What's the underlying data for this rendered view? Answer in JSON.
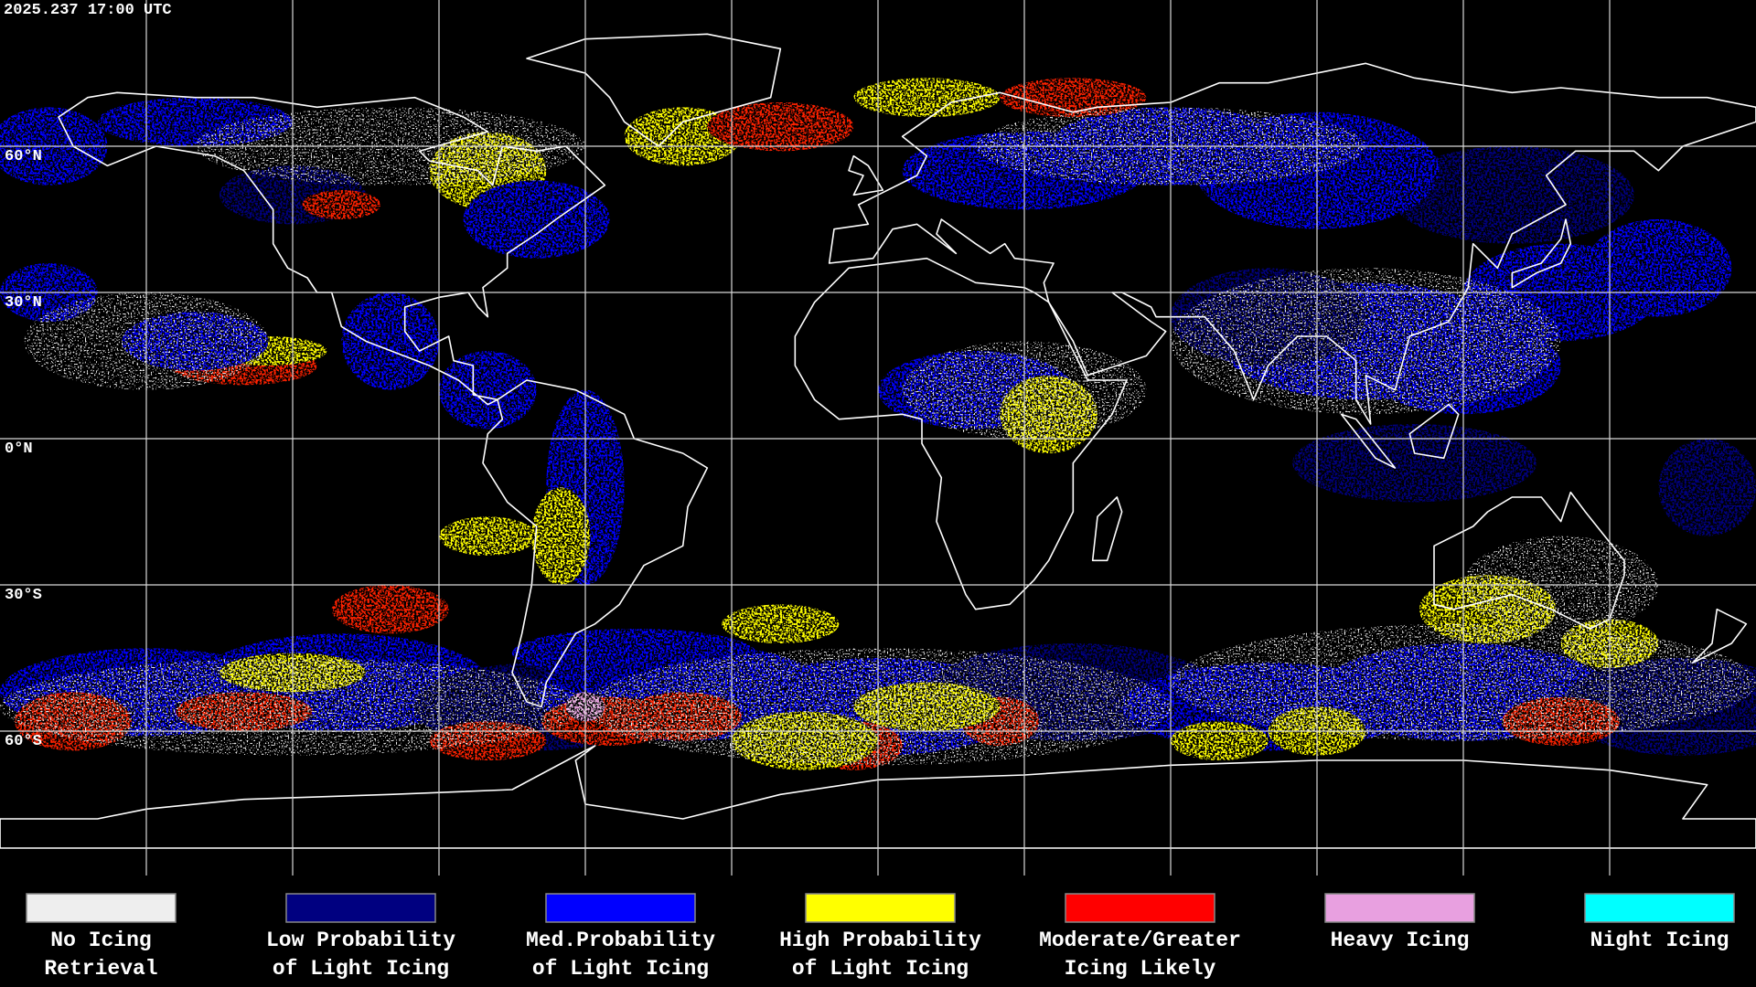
{
  "timestamp": "2025.237 17:00 UTC",
  "latitude_labels": [
    "60°N",
    "30°N",
    "0°N",
    "30°S",
    "60°S"
  ],
  "legend": [
    {
      "label_lines": [
        "No Icing",
        "Retrieval"
      ],
      "color": "#eeeeee"
    },
    {
      "label_lines": [
        "Low Probability",
        "of Light Icing"
      ],
      "color": "#000080"
    },
    {
      "label_lines": [
        "Med.Probability",
        "of Light Icing"
      ],
      "color": "#0000ff"
    },
    {
      "label_lines": [
        "High Probability",
        "of Light Icing"
      ],
      "color": "#ffff00"
    },
    {
      "label_lines": [
        "Moderate/Greater",
        "Icing Likely"
      ],
      "color": "#ff0000"
    },
    {
      "label_lines": [
        "Heavy Icing"
      ],
      "color": "#e8a0e0"
    },
    {
      "label_lines": [
        "Night Icing"
      ],
      "color": "#00ffff"
    }
  ]
}
